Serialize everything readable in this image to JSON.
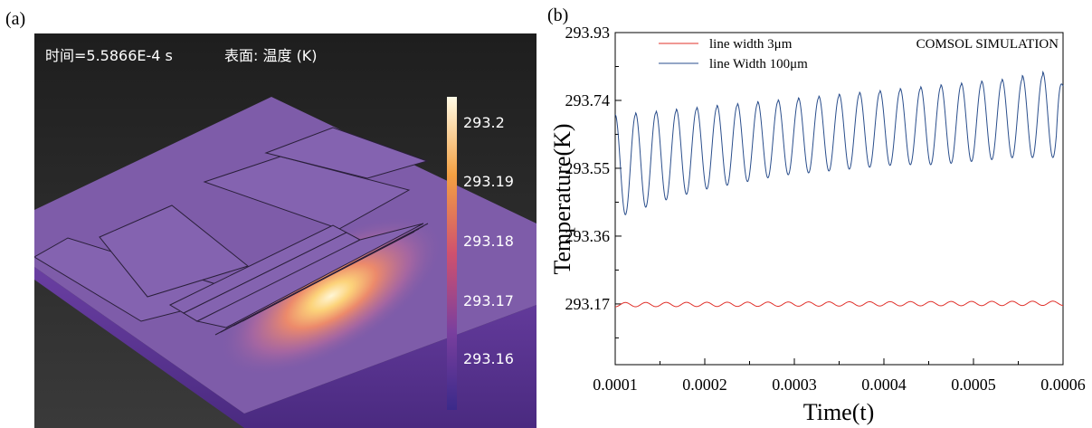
{
  "labels": {
    "a": "(a)",
    "b": "(b)"
  },
  "simulation": {
    "time_text": "时间=5.5866E-4 s",
    "surface_text": "表面: 温度 (K)",
    "colorbar_ticks": [
      "293.2",
      "293.19",
      "293.18",
      "293.17",
      "293.16"
    ],
    "colors": {
      "background": "#252525",
      "plate": "#7e5ca9",
      "hot": "#fff2c0",
      "colorbar_low": "#3b2a8a",
      "colorbar_high": "#fffbe6"
    }
  },
  "chart_data": {
    "type": "line",
    "title": "",
    "annotation": "COMSOL SIMULATION",
    "xlabel": "Time(t)",
    "ylabel": "Temperature(K)",
    "xlim": [
      0.0001,
      0.0006
    ],
    "ylim": [
      293.0,
      293.93
    ],
    "xticks": [
      "0.0001",
      "0.0002",
      "0.0003",
      "0.0004",
      "0.0005",
      "0.0006"
    ],
    "yticks": [
      "293.93",
      "293.74",
      "293.55",
      "293.36",
      "293.17"
    ],
    "grid": false,
    "legend_position": "top-left",
    "series": [
      {
        "name": "line width 3μm",
        "color": "#e0302a",
        "x_start": 0.0001,
        "x_end": 0.0006,
        "cycles": 22,
        "baseline": 293.168,
        "baseline_end": 293.172,
        "amplitude": 0.006,
        "phase": 3.14
      },
      {
        "name": "line Width 100μm",
        "color": "#2a4e8c",
        "x_start": 0.0001,
        "x_end": 0.0006,
        "cycles": 22,
        "peaks": [
          293.7,
          293.71,
          293.72,
          293.73,
          293.74,
          293.75,
          293.76,
          293.77,
          293.78,
          293.79,
          293.8,
          293.82
        ],
        "troughs": [
          293.42,
          293.46,
          293.49,
          293.51,
          293.53,
          293.54,
          293.55,
          293.56,
          293.56,
          293.57,
          293.58,
          293.58
        ],
        "end_value": 293.78
      }
    ]
  }
}
